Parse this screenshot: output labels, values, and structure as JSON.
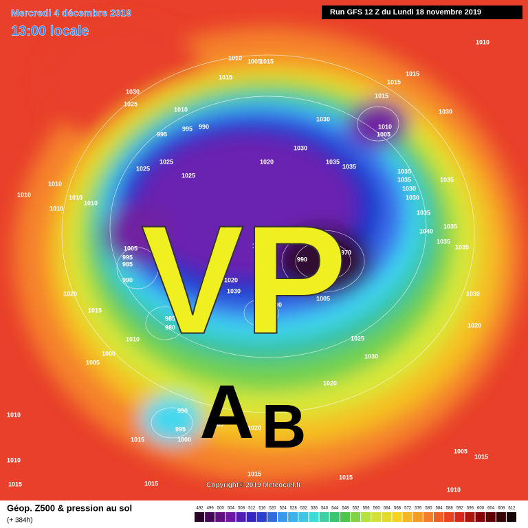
{
  "header": {
    "date": "Mercredi 4 décembre 2019",
    "time": "13:00 locale",
    "run": "Run GFS 12 Z du Lundi 18 novembre 2019"
  },
  "annotations": {
    "vp": "VP",
    "a": "A",
    "b": "B"
  },
  "copyright": "Copyright© 2019 Meteociel.fr",
  "footer": {
    "title": "Géop. Z500 & pression au sol",
    "lead": "(+ 384h)"
  },
  "legend": {
    "values": [
      492,
      496,
      500,
      504,
      508,
      512,
      516,
      520,
      524,
      528,
      532,
      536,
      540,
      544,
      548,
      552,
      556,
      560,
      564,
      568,
      572,
      576,
      580,
      584,
      588,
      592,
      596,
      600,
      604,
      608,
      612
    ]
  },
  "pressure_labels": [
    1010,
    1010,
    1005,
    1015,
    1015,
    1015,
    1015,
    1030,
    1015,
    1025,
    1010,
    1030,
    1030,
    1010,
    990,
    995,
    995,
    1005,
    1030,
    1025,
    1020,
    1035,
    1025,
    1035,
    1025,
    1035,
    1010,
    1035,
    1035,
    1030,
    1010,
    1030,
    1010,
    1010,
    1010,
    1035,
    995,
    1035,
    1040,
    1005,
    1015,
    1035,
    1035,
    970,
    980,
    990,
    995,
    985,
    990,
    1020,
    995,
    1030,
    1005,
    1020,
    1030,
    1015,
    1000,
    985,
    980,
    985,
    1005,
    1020,
    1010,
    1025,
    1000,
    1005,
    1030,
    1020,
    990,
    995,
    1000,
    1005,
    1020,
    1010,
    1015,
    1005,
    1015,
    1010,
    1015,
    1015,
    1010,
    1015,
    1015
  ]
}
